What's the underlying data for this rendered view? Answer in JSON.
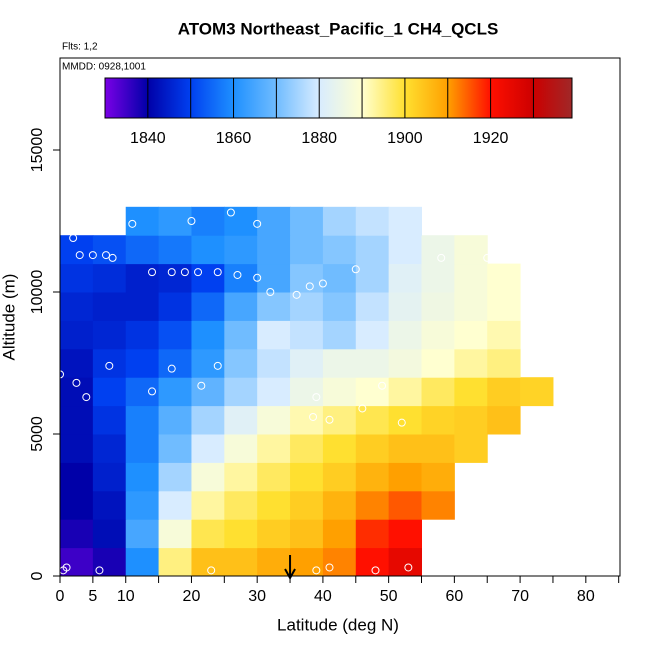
{
  "chart_data": {
    "type": "heatmap",
    "title": "ATOM3 Northeast_Pacific_1 CH4_QCLS",
    "annotations": [
      "Flts: 1,2",
      "MMDD: 0928,1001"
    ],
    "x_label": "Latitude (deg N)",
    "y_label": "Altitude (m)",
    "xlim": [
      0,
      85.2
    ],
    "ylim": [
      0,
      18240
    ],
    "xticks": [
      0,
      5,
      10,
      20,
      30,
      40,
      50,
      60,
      70,
      80
    ],
    "xminor_ticks": [
      15,
      25,
      35,
      45,
      55,
      65,
      75,
      85
    ],
    "yticks": [
      0,
      5000,
      10000,
      15000
    ],
    "x_bins": [
      0,
      5,
      10,
      15,
      20,
      25,
      30,
      35,
      40,
      45,
      50,
      55,
      60,
      65,
      70,
      75
    ],
    "y_bins": [
      0,
      1000,
      2000,
      3000,
      4000,
      5000,
      6000,
      7000,
      8000,
      9000,
      10000,
      11000,
      12000,
      13000
    ],
    "values": [
      [
        1835,
        1838,
        1860,
        1895,
        1905,
        1905,
        1908,
        1910,
        1912,
        1920,
        1925,
        null,
        null,
        null,
        null
      ],
      [
        1838,
        1842,
        1865,
        1888,
        1898,
        1900,
        1903,
        1905,
        1910,
        1918,
        1920,
        null,
        null,
        null,
        null
      ],
      [
        1840,
        1843,
        1862,
        1880,
        1893,
        1897,
        1900,
        1903,
        1907,
        1912,
        1915,
        1912,
        null,
        null,
        null
      ],
      [
        1840,
        1845,
        1860,
        1875,
        1888,
        1893,
        1897,
        1900,
        1903,
        1907,
        1910,
        1908,
        null,
        null,
        null
      ],
      [
        1842,
        1846,
        1858,
        1870,
        1880,
        1888,
        1893,
        1897,
        1900,
        1903,
        1905,
        1905,
        1903,
        null,
        null
      ],
      [
        1842,
        1848,
        1858,
        1867,
        1875,
        1882,
        1888,
        1892,
        1895,
        1898,
        1900,
        1902,
        1903,
        1905,
        null
      ],
      [
        1842,
        1850,
        1855,
        1862,
        1868,
        1875,
        1880,
        1885,
        1888,
        1890,
        1893,
        1897,
        1900,
        1903,
        1902
      ],
      [
        1843,
        1848,
        1850,
        1855,
        1862,
        1872,
        1878,
        1882,
        1885,
        1885,
        1887,
        1890,
        1893,
        1895,
        null
      ],
      [
        1845,
        1846,
        1848,
        1852,
        1860,
        1870,
        1880,
        1878,
        1875,
        1880,
        1885,
        1888,
        1890,
        1892,
        null
      ],
      [
        1846,
        1845,
        1845,
        1848,
        1855,
        1865,
        1872,
        1875,
        1872,
        1878,
        1883,
        1886,
        1888,
        1890,
        null
      ],
      [
        1848,
        1847,
        1845,
        1846,
        1850,
        1858,
        1865,
        1872,
        1870,
        1875,
        1882,
        1885,
        1888,
        1890,
        null
      ],
      [
        1850,
        1852,
        1855,
        1857,
        1860,
        1862,
        1865,
        1870,
        1872,
        1875,
        1880,
        1885,
        1888,
        null,
        null
      ],
      [
        null,
        null,
        1860,
        1862,
        1858,
        1860,
        1865,
        1870,
        1875,
        1878,
        1880,
        null,
        null,
        null,
        null
      ]
    ],
    "colorscale": [
      {
        "value": 1830,
        "color": "#7a00e6"
      },
      {
        "value": 1840,
        "color": "#0000a8"
      },
      {
        "value": 1850,
        "color": "#0040f0"
      },
      {
        "value": 1860,
        "color": "#1e90ff"
      },
      {
        "value": 1870,
        "color": "#70bcff"
      },
      {
        "value": 1880,
        "color": "#d8ecff"
      },
      {
        "value": 1890,
        "color": "#ffffd0"
      },
      {
        "value": 1900,
        "color": "#ffe030"
      },
      {
        "value": 1910,
        "color": "#ffa000"
      },
      {
        "value": 1920,
        "color": "#ff1000"
      },
      {
        "value": 1930,
        "color": "#cc0000"
      },
      {
        "value": 1940,
        "color": "#a02828"
      }
    ],
    "colorbar": {
      "lim": [
        1830,
        1939
      ],
      "ticks": [
        1840,
        1860,
        1880,
        1900,
        1920
      ],
      "breaks": [
        1840,
        1850,
        1860,
        1870,
        1880,
        1890,
        1900,
        1910,
        1920,
        1930
      ]
    },
    "samples": {
      "x": [
        0,
        0.5,
        1,
        2,
        3,
        2.5,
        4,
        5,
        6,
        7,
        7.5,
        8,
        11,
        14,
        14,
        17,
        17,
        19,
        20,
        21,
        21.5,
        23,
        24,
        24,
        26,
        27,
        30,
        30,
        32,
        36,
        38,
        38.5,
        39,
        40,
        41,
        41,
        39,
        45,
        46,
        48,
        49,
        52,
        53,
        58,
        65
      ],
      "y": [
        7100,
        200,
        300,
        11900,
        11300,
        6800,
        6300,
        11300,
        200,
        11300,
        7400,
        11200,
        12400,
        10700,
        6500,
        10700,
        7300,
        10700,
        12500,
        10700,
        6700,
        200,
        10700,
        7400,
        12800,
        10600,
        10500,
        12400,
        10000,
        9900,
        10200,
        5600,
        6300,
        10300,
        5500,
        300,
        200,
        10800,
        5900,
        200,
        6700,
        5400,
        300,
        11200,
        11200
      ]
    },
    "arrow_x": 35
  }
}
